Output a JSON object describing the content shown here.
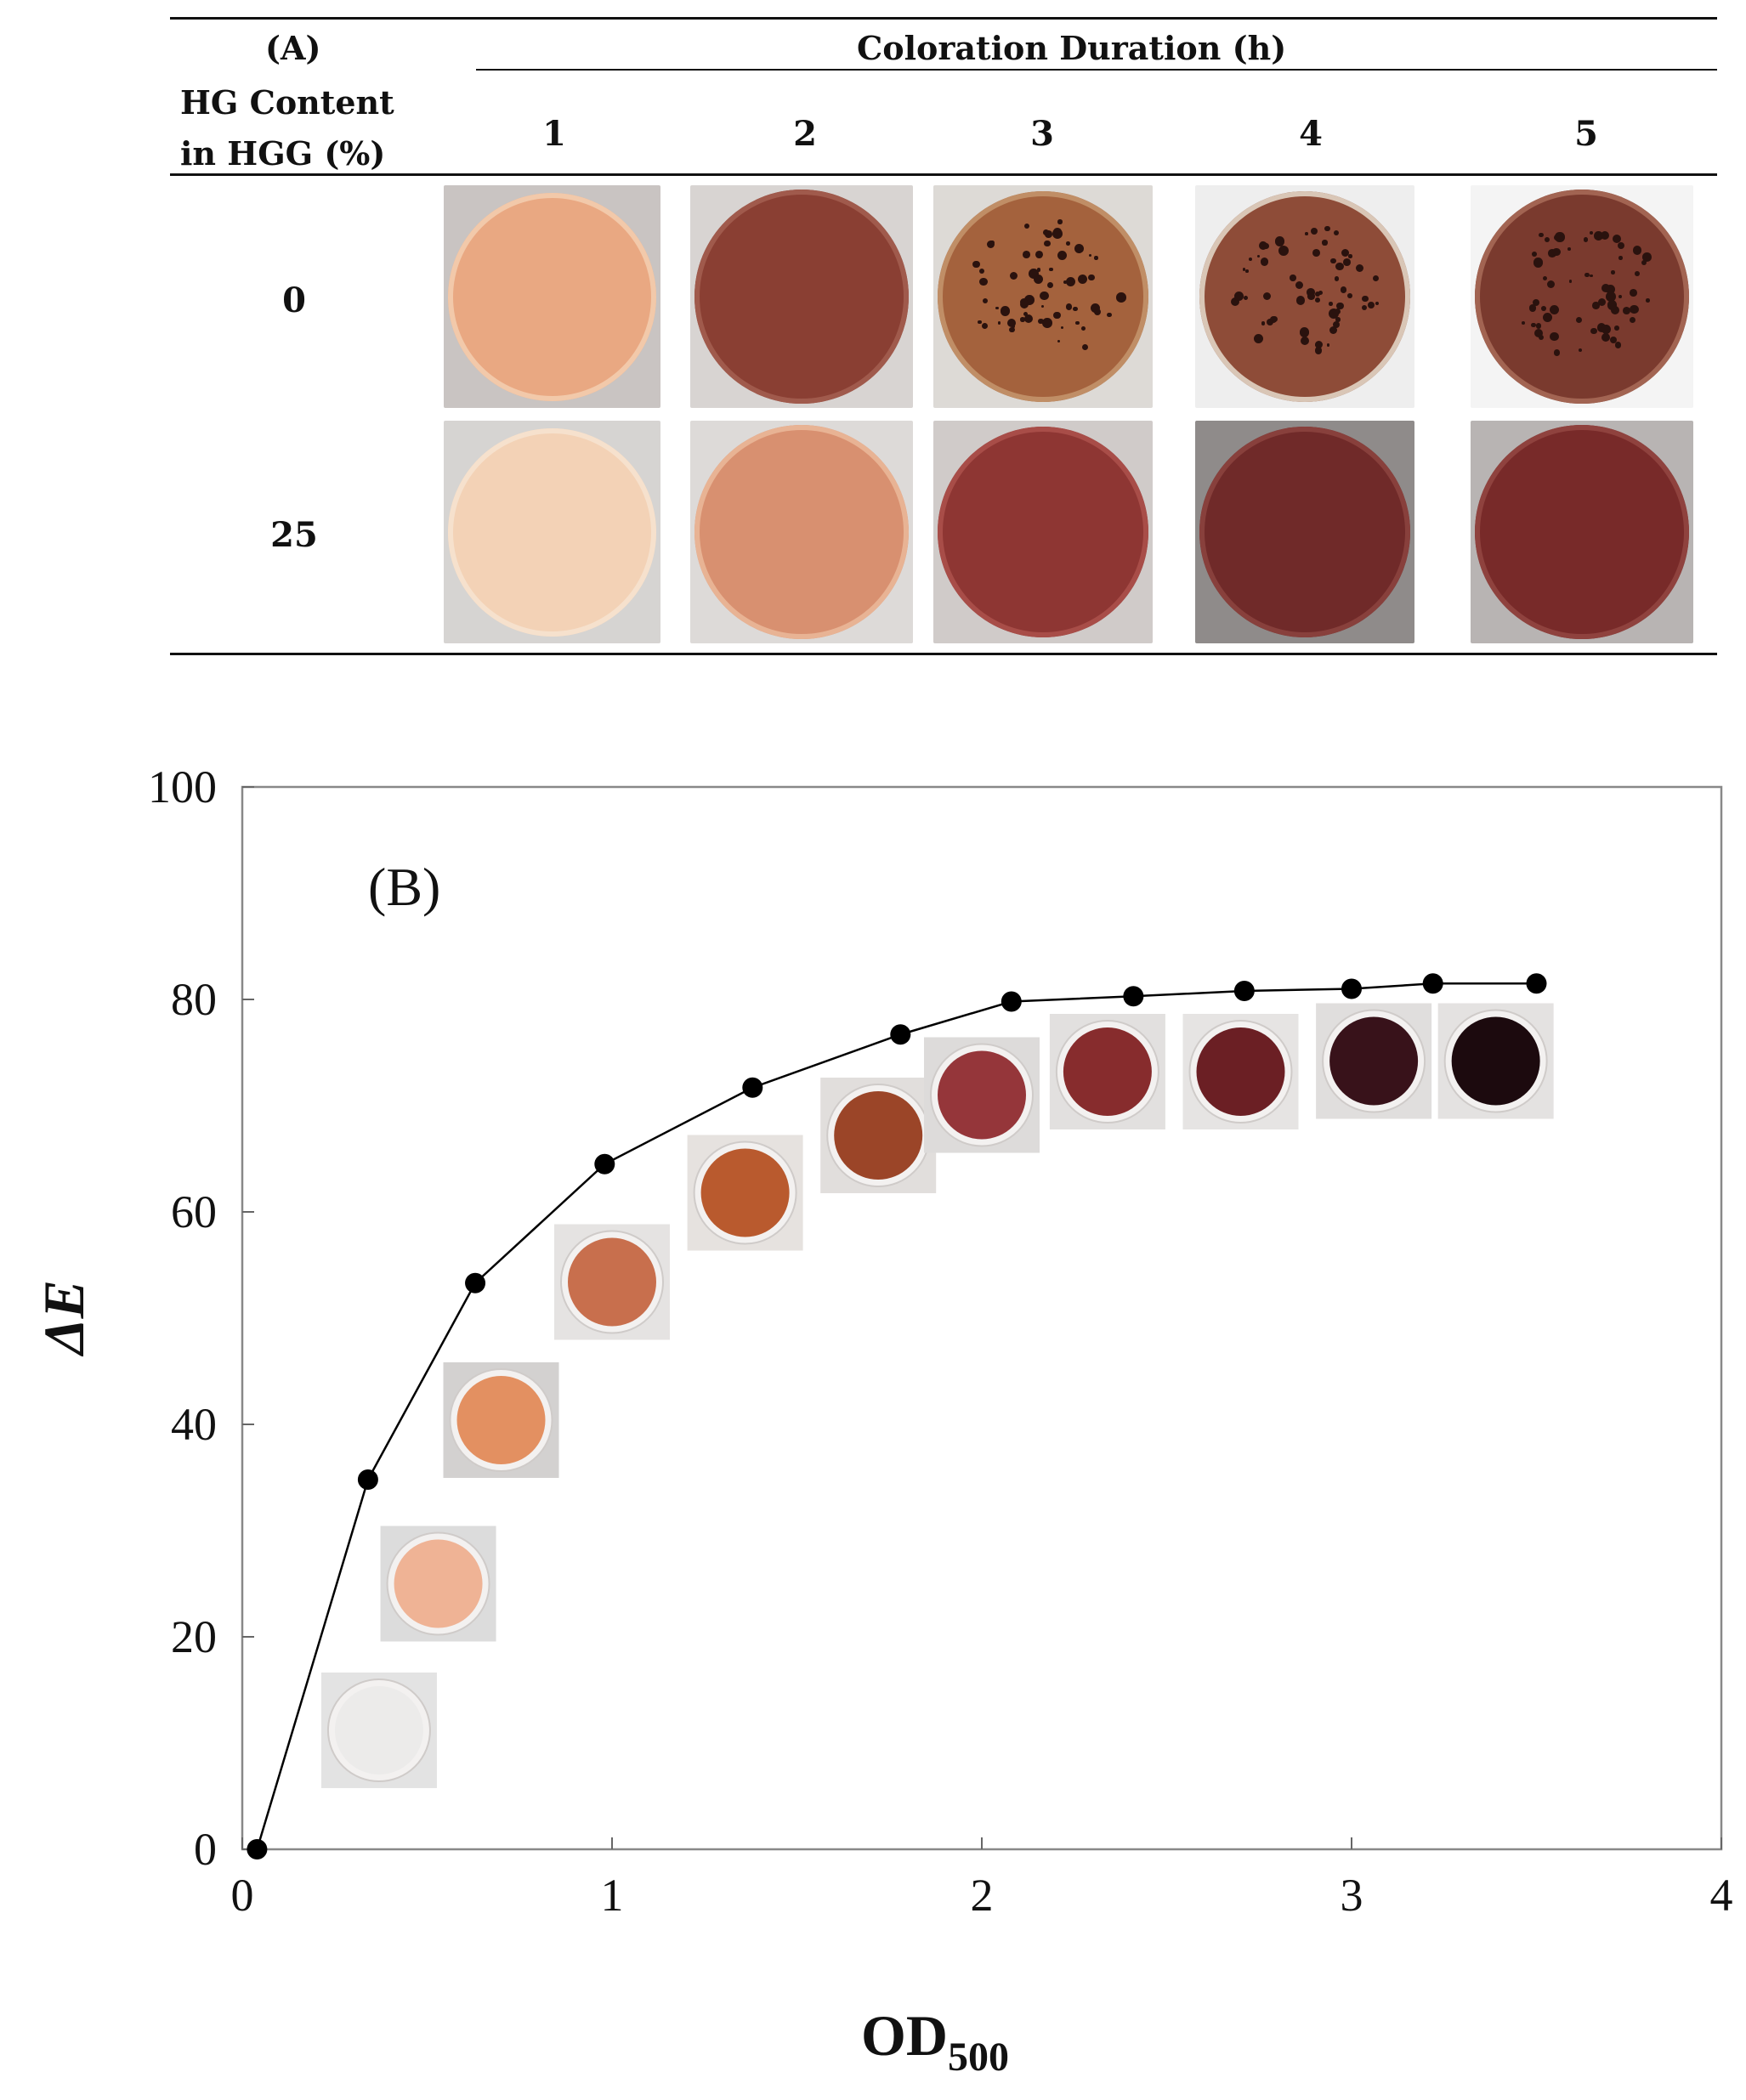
{
  "panel_a": {
    "label": "(A)",
    "column_group_header": "Coloration Duration (h)",
    "row_header_line1": "HG Content",
    "row_header_line2": "in HGG (%)",
    "columns": [
      "1",
      "2",
      "3",
      "4",
      "5"
    ],
    "rows": [
      {
        "label": "0",
        "wells": [
          {
            "fill": "#e9a882",
            "rim": "#f2c9aa",
            "bg": "#c9c4c2",
            "specks": false
          },
          {
            "fill": "#8a3f33",
            "rim": "#a05a4c",
            "bg": "#d8d4d2",
            "specks": false
          },
          {
            "fill": "#a4623d",
            "rim": "#c08e66",
            "bg": "#dddad6",
            "specks": true
          },
          {
            "fill": "#8e4c38",
            "rim": "#d9c6b6",
            "bg": "#eeeeee",
            "specks": true
          },
          {
            "fill": "#7a3a2e",
            "rim": "#a26452",
            "bg": "#f4f4f4",
            "specks": true
          }
        ]
      },
      {
        "label": "25",
        "wells": [
          {
            "fill": "#f3d2b6",
            "rim": "#f6e1cd",
            "bg": "#d6d4d2",
            "specks": false
          },
          {
            "fill": "#d89070",
            "rim": "#e8b394",
            "bg": "#dddad8",
            "specks": false
          },
          {
            "fill": "#8e3633",
            "rim": "#a84d48",
            "bg": "#d0cbc9",
            "specks": false
          },
          {
            "fill": "#702a29",
            "rim": "#88403c",
            "bg": "#8f8b8a",
            "specks": false
          },
          {
            "fill": "#782a29",
            "rim": "#8f423e",
            "bg": "#b8b4b3",
            "specks": false
          }
        ]
      }
    ]
  },
  "chart_data": {
    "type": "line",
    "panel_label": "(B)",
    "title": "",
    "xlabel": "OD",
    "xlabel_subscript": "500",
    "ylabel": "ΔE",
    "xlim": [
      0,
      4
    ],
    "ylim": [
      0,
      100
    ],
    "x_ticks": [
      0,
      1,
      2,
      3,
      4
    ],
    "y_ticks": [
      0,
      20,
      40,
      60,
      80,
      100
    ],
    "grid": false,
    "series": [
      {
        "marker": "filled-circle",
        "color": "#000000",
        "points": [
          {
            "x": 0.04,
            "y": 0.0
          },
          {
            "x": 0.34,
            "y": 34.8
          },
          {
            "x": 0.63,
            "y": 53.3
          },
          {
            "x": 0.98,
            "y": 64.5
          },
          {
            "x": 1.38,
            "y": 71.7
          },
          {
            "x": 1.78,
            "y": 76.7
          },
          {
            "x": 2.08,
            "y": 79.8
          },
          {
            "x": 2.41,
            "y": 80.3
          },
          {
            "x": 2.71,
            "y": 80.8
          },
          {
            "x": 3.0,
            "y": 81.0
          },
          {
            "x": 3.22,
            "y": 81.5
          },
          {
            "x": 3.5,
            "y": 81.5
          }
        ]
      }
    ],
    "well_insets": [
      {
        "x": 0.37,
        "y": 11.2,
        "fill": "#ecebea",
        "bg": "#e3e3e3"
      },
      {
        "x": 0.53,
        "y": 25.0,
        "fill": "#efb395",
        "bg": "#dcdcdc"
      },
      {
        "x": 0.7,
        "y": 40.4,
        "fill": "#e39061",
        "bg": "#d3d1d0"
      },
      {
        "x": 1.0,
        "y": 53.4,
        "fill": "#c86f4d",
        "bg": "#e5e3e2"
      },
      {
        "x": 1.36,
        "y": 61.8,
        "fill": "#b95a2e",
        "bg": "#e6e2df"
      },
      {
        "x": 1.72,
        "y": 67.2,
        "fill": "#9b4528",
        "bg": "#e1dedc"
      },
      {
        "x": 2.0,
        "y": 71.0,
        "fill": "#95363a",
        "bg": "#dddbda"
      },
      {
        "x": 2.34,
        "y": 73.2,
        "fill": "#872c2d",
        "bg": "#e2e0df"
      },
      {
        "x": 2.7,
        "y": 73.2,
        "fill": "#6b1f24",
        "bg": "#e6e4e3"
      },
      {
        "x": 3.06,
        "y": 74.2,
        "fill": "#38121a",
        "bg": "#e0dedd"
      },
      {
        "x": 3.39,
        "y": 74.2,
        "fill": "#1c0a0e",
        "bg": "#e4e2e1"
      }
    ]
  }
}
